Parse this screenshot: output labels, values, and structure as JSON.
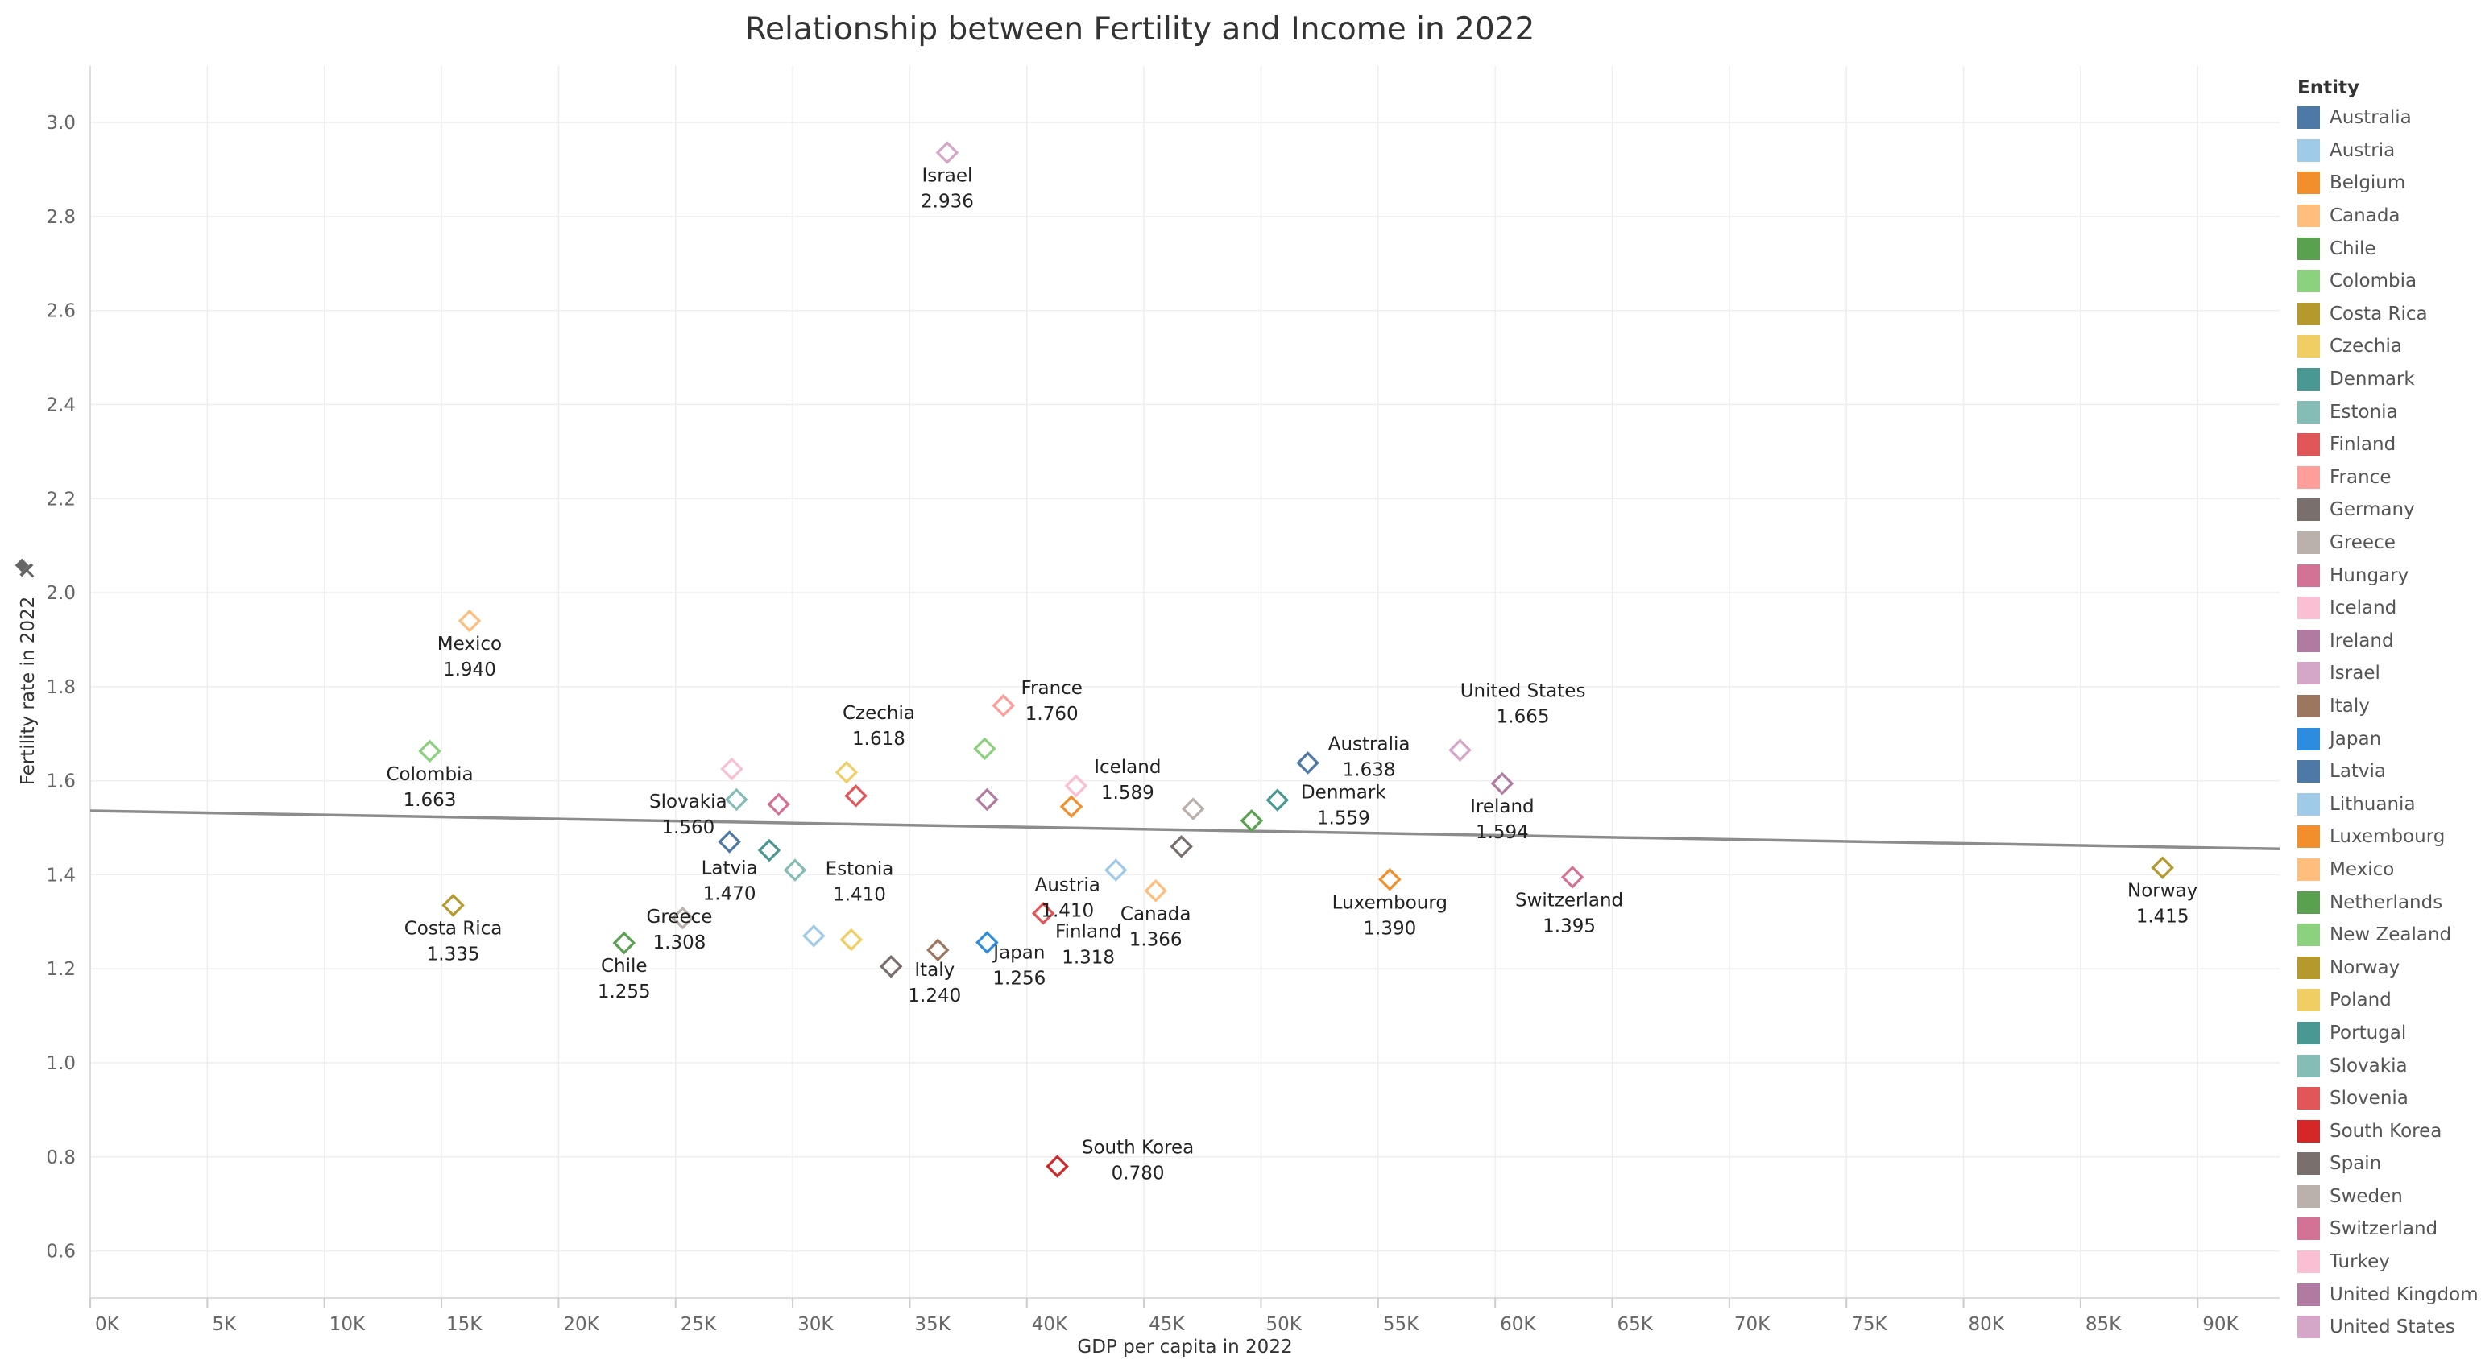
{
  "chart_data": {
    "type": "scatter",
    "title": "Relationship between Fertility and Income in 2022",
    "xlabel": "GDP per capita in 2022",
    "ylabel": "Fertility rate in 2022",
    "xlim": [
      0,
      93500
    ],
    "ylim": [
      0.5,
      3.12
    ],
    "x_ticks": [
      "0K",
      "5K",
      "10K",
      "15K",
      "20K",
      "25K",
      "30K",
      "35K",
      "40K",
      "45K",
      "50K",
      "55K",
      "60K",
      "65K",
      "70K",
      "75K",
      "80K",
      "85K",
      "90K"
    ],
    "y_ticks": [
      "0.6",
      "0.8",
      "1.0",
      "1.2",
      "1.4",
      "1.6",
      "1.8",
      "2.0",
      "2.2",
      "2.4",
      "2.6",
      "2.8",
      "3.0"
    ],
    "grid": true,
    "trend_line": {
      "y_at_x0": 1.536,
      "y_at_xmax": 1.455
    },
    "legend_title": "Entity",
    "legend_position": "right",
    "points": [
      {
        "entity": "Australia",
        "x": 52000,
        "y": 1.638,
        "color": "#4e79a7",
        "label": "Australia",
        "value_label": "1.638"
      },
      {
        "entity": "Austria",
        "x": 43800,
        "y": 1.41,
        "color": "#a0cbe8",
        "label": "Austria",
        "value_label": "1.410"
      },
      {
        "entity": "Belgium",
        "x": 41900,
        "y": 1.545,
        "color": "#f28e2b"
      },
      {
        "entity": "Canada",
        "x": 45500,
        "y": 1.366,
        "color": "#ffbe7d",
        "label": "Canada",
        "value_label": "1.366"
      },
      {
        "entity": "Chile",
        "x": 22800,
        "y": 1.255,
        "color": "#59a14f",
        "label": "Chile",
        "value_label": "1.255"
      },
      {
        "entity": "Colombia",
        "x": 14500,
        "y": 1.663,
        "color": "#8cd17d",
        "label": "Colombia",
        "value_label": "1.663"
      },
      {
        "entity": "Costa Rica",
        "x": 15500,
        "y": 1.335,
        "color": "#b6992d",
        "label": "Costa Rica",
        "value_label": "1.335"
      },
      {
        "entity": "Czechia",
        "x": 32300,
        "y": 1.618,
        "color": "#f1ce63",
        "label": "Czechia",
        "value_label": "1.618"
      },
      {
        "entity": "Denmark",
        "x": 50700,
        "y": 1.559,
        "color": "#499894",
        "label": "Denmark",
        "value_label": "1.559"
      },
      {
        "entity": "Estonia",
        "x": 30100,
        "y": 1.41,
        "color": "#86bcb6",
        "label": "Estonia",
        "value_label": "1.410"
      },
      {
        "entity": "Finland",
        "x": 40700,
        "y": 1.318,
        "color": "#e15759",
        "label": "Finland",
        "value_label": "1.318"
      },
      {
        "entity": "France",
        "x": 39000,
        "y": 1.76,
        "color": "#ff9d9a",
        "label": "France",
        "value_label": "1.760"
      },
      {
        "entity": "Germany",
        "x": 46600,
        "y": 1.46,
        "color": "#79706e"
      },
      {
        "entity": "Greece",
        "x": 25300,
        "y": 1.308,
        "color": "#bab0ac",
        "label": "Greece",
        "value_label": "1.308"
      },
      {
        "entity": "Hungary",
        "x": 29400,
        "y": 1.55,
        "color": "#d37295"
      },
      {
        "entity": "Iceland",
        "x": 42100,
        "y": 1.589,
        "color": "#fabfd2",
        "label": "Iceland",
        "value_label": "1.589"
      },
      {
        "entity": "Ireland",
        "x": 60300,
        "y": 1.594,
        "color": "#b07aa1",
        "label": "Ireland",
        "value_label": "1.594"
      },
      {
        "entity": "Israel",
        "x": 36600,
        "y": 2.936,
        "color": "#d4a6c8",
        "label": "Israel",
        "value_label": "2.936"
      },
      {
        "entity": "Italy",
        "x": 36200,
        "y": 1.24,
        "color": "#9d7660",
        "label": "Italy",
        "value_label": "1.240"
      },
      {
        "entity": "Japan",
        "x": 38300,
        "y": 1.256,
        "color": "#2c8ce0",
        "label": "Japan",
        "value_label": "1.256"
      },
      {
        "entity": "Latvia",
        "x": 27300,
        "y": 1.47,
        "color": "#4e79a7",
        "label": "Latvia",
        "value_label": "1.470"
      },
      {
        "entity": "Lithuania",
        "x": 30900,
        "y": 1.27,
        "color": "#a0cbe8"
      },
      {
        "entity": "Luxembourg",
        "x": 55500,
        "y": 1.39,
        "color": "#f28e2b",
        "label": "Luxembourg",
        "value_label": "1.390"
      },
      {
        "entity": "Mexico",
        "x": 16200,
        "y": 1.94,
        "color": "#ffbe7d",
        "label": "Mexico",
        "value_label": "1.940"
      },
      {
        "entity": "Netherlands",
        "x": 49600,
        "y": 1.515,
        "color": "#59a14f"
      },
      {
        "entity": "New Zealand",
        "x": 38200,
        "y": 1.668,
        "color": "#8cd17d"
      },
      {
        "entity": "Norway",
        "x": 88500,
        "y": 1.415,
        "color": "#b6992d",
        "label": "Norway",
        "value_label": "1.415"
      },
      {
        "entity": "Poland",
        "x": 32500,
        "y": 1.262,
        "color": "#f1ce63"
      },
      {
        "entity": "Portugal",
        "x": 29000,
        "y": 1.452,
        "color": "#499894"
      },
      {
        "entity": "Slovakia",
        "x": 27600,
        "y": 1.56,
        "color": "#86bcb6",
        "label": "Slovakia",
        "value_label": "1.560"
      },
      {
        "entity": "Slovenia",
        "x": 32700,
        "y": 1.568,
        "color": "#e15759"
      },
      {
        "entity": "South Korea",
        "x": 41300,
        "y": 0.78,
        "color": "#d62728",
        "label": "South Korea",
        "value_label": "0.780"
      },
      {
        "entity": "Spain",
        "x": 34200,
        "y": 1.205,
        "color": "#79706e"
      },
      {
        "entity": "Sweden",
        "x": 47100,
        "y": 1.54,
        "color": "#bab0ac"
      },
      {
        "entity": "Switzerland",
        "x": 63300,
        "y": 1.395,
        "color": "#d37295",
        "label": "Switzerland",
        "value_label": "1.395"
      },
      {
        "entity": "Turkey",
        "x": 27400,
        "y": 1.625,
        "color": "#fabfd2"
      },
      {
        "entity": "United Kingdom",
        "x": 38300,
        "y": 1.56,
        "color": "#b07aa1"
      },
      {
        "entity": "United States",
        "x": 58500,
        "y": 1.665,
        "color": "#d4a6c8",
        "label": "United States",
        "value_label": "1.665"
      }
    ]
  },
  "legend": {
    "title": "Entity",
    "items": [
      {
        "label": "Australia",
        "color": "#4e79a7"
      },
      {
        "label": "Austria",
        "color": "#a0cbe8"
      },
      {
        "label": "Belgium",
        "color": "#f28e2b"
      },
      {
        "label": "Canada",
        "color": "#ffbe7d"
      },
      {
        "label": "Chile",
        "color": "#59a14f"
      },
      {
        "label": "Colombia",
        "color": "#8cd17d"
      },
      {
        "label": "Costa Rica",
        "color": "#b6992d"
      },
      {
        "label": "Czechia",
        "color": "#f1ce63"
      },
      {
        "label": "Denmark",
        "color": "#499894"
      },
      {
        "label": "Estonia",
        "color": "#86bcb6"
      },
      {
        "label": "Finland",
        "color": "#e15759"
      },
      {
        "label": "France",
        "color": "#ff9d9a"
      },
      {
        "label": "Germany",
        "color": "#79706e"
      },
      {
        "label": "Greece",
        "color": "#bab0ac"
      },
      {
        "label": "Hungary",
        "color": "#d37295"
      },
      {
        "label": "Iceland",
        "color": "#fabfd2"
      },
      {
        "label": "Ireland",
        "color": "#b07aa1"
      },
      {
        "label": "Israel",
        "color": "#d4a6c8"
      },
      {
        "label": "Italy",
        "color": "#9d7660"
      },
      {
        "label": "Japan",
        "color": "#2c8ce0"
      },
      {
        "label": "Latvia",
        "color": "#4e79a7"
      },
      {
        "label": "Lithuania",
        "color": "#a0cbe8"
      },
      {
        "label": "Luxembourg",
        "color": "#f28e2b"
      },
      {
        "label": "Mexico",
        "color": "#ffbe7d"
      },
      {
        "label": "Netherlands",
        "color": "#59a14f"
      },
      {
        "label": "New Zealand",
        "color": "#8cd17d"
      },
      {
        "label": "Norway",
        "color": "#b6992d"
      },
      {
        "label": "Poland",
        "color": "#f1ce63"
      },
      {
        "label": "Portugal",
        "color": "#499894"
      },
      {
        "label": "Slovakia",
        "color": "#86bcb6"
      },
      {
        "label": "Slovenia",
        "color": "#e15759"
      },
      {
        "label": "South Korea",
        "color": "#d62728"
      },
      {
        "label": "Spain",
        "color": "#79706e"
      },
      {
        "label": "Sweden",
        "color": "#bab0ac"
      },
      {
        "label": "Switzerland",
        "color": "#d37295"
      },
      {
        "label": "Turkey",
        "color": "#fabfd2"
      },
      {
        "label": "United Kingdom",
        "color": "#b07aa1"
      },
      {
        "label": "United States",
        "color": "#d4a6c8"
      }
    ]
  },
  "icons": {
    "y_axis_pin": "pin-icon"
  }
}
